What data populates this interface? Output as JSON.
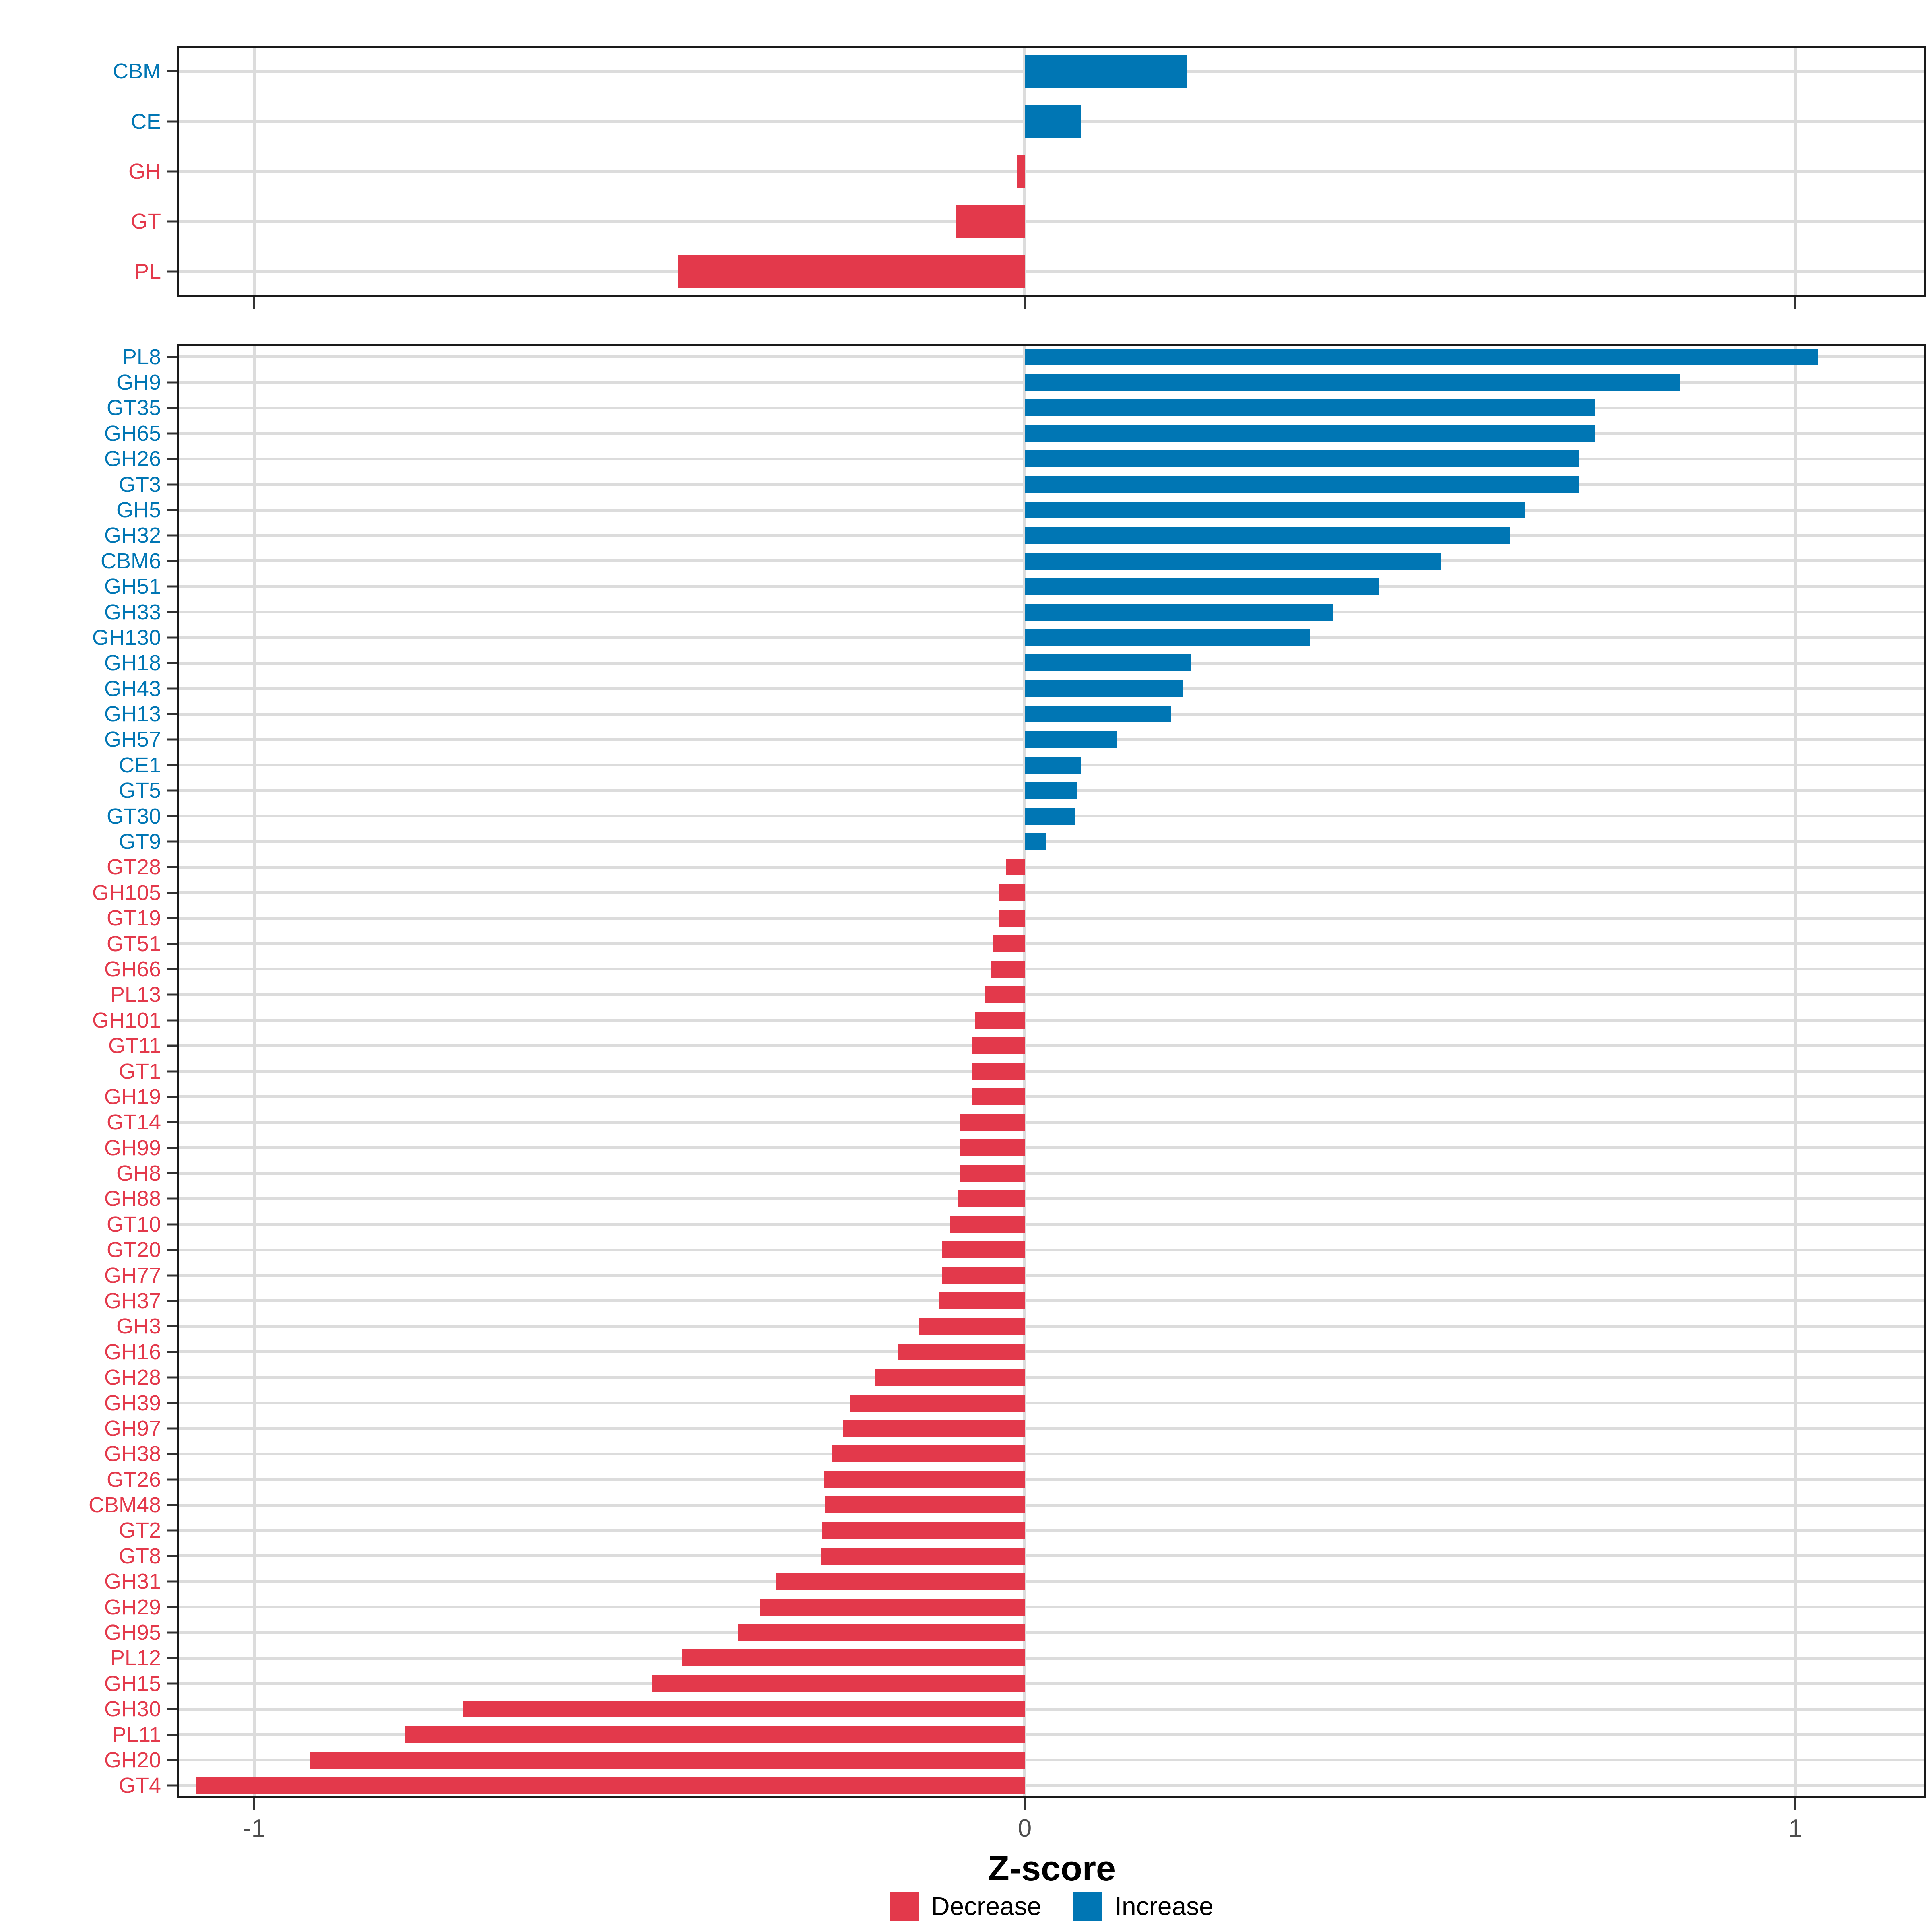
{
  "figure": {
    "background": "#FFFFFF"
  },
  "axis": {
    "xlabel": "Z-score",
    "ticks": [
      -1,
      0,
      1
    ],
    "tick_labels": [
      "-1",
      "0",
      "1"
    ],
    "xlim": [
      -1.1,
      1.17
    ]
  },
  "legend": {
    "items": [
      {
        "label": "Decrease",
        "key": "decrease"
      },
      {
        "label": "Increase",
        "key": "increase"
      }
    ]
  },
  "colors": {
    "increase": "#0076B4",
    "decrease": "#E3394B",
    "grid": "#DCDCDC",
    "axis_line": "#1A1A1A",
    "tick_mark": "#333333",
    "x_tick_label": "#4D4D4D",
    "title": "#000000"
  },
  "chart_data": [
    {
      "id": "top",
      "type": "bar",
      "orientation": "horizontal",
      "title": "",
      "xlabel": "Z-score",
      "categories": [
        "CBM",
        "CE",
        "GH",
        "GT",
        "PL"
      ],
      "values": [
        0.21,
        0.073,
        -0.01,
        -0.09,
        -0.45
      ]
    },
    {
      "id": "bottom",
      "type": "bar",
      "orientation": "horizontal",
      "title": "",
      "xlabel": "Z-score",
      "categories": [
        "PL8",
        "GH9",
        "GT35",
        "GH65",
        "GH26",
        "GT3",
        "GH5",
        "GH32",
        "CBM6",
        "GH51",
        "GH33",
        "GH130",
        "GH18",
        "GH43",
        "GH13",
        "GH57",
        "CE1",
        "GT5",
        "GT30",
        "GT9",
        "GT28",
        "GH105",
        "GT19",
        "GT51",
        "GH66",
        "PL13",
        "GH101",
        "GT11",
        "GT1",
        "GH19",
        "GT14",
        "GH99",
        "GH8",
        "GH88",
        "GT10",
        "GT20",
        "GH77",
        "GH37",
        "GH3",
        "GH16",
        "GH28",
        "GH39",
        "GH97",
        "GH38",
        "GT26",
        "CBM48",
        "GT2",
        "GT8",
        "GH31",
        "GH29",
        "GH95",
        "PL12",
        "GH15",
        "GH30",
        "PL11",
        "GH20",
        "GT4"
      ],
      "values": [
        1.03,
        0.85,
        0.74,
        0.74,
        0.72,
        0.72,
        0.65,
        0.63,
        0.54,
        0.46,
        0.4,
        0.37,
        0.215,
        0.205,
        0.19,
        0.12,
        0.073,
        0.068,
        0.065,
        0.028,
        -0.024,
        -0.033,
        -0.033,
        -0.041,
        -0.044,
        -0.051,
        -0.065,
        -0.068,
        -0.068,
        -0.068,
        -0.084,
        -0.084,
        -0.084,
        -0.086,
        -0.097,
        -0.107,
        -0.107,
        -0.111,
        -0.138,
        -0.164,
        -0.195,
        -0.227,
        -0.236,
        -0.25,
        -0.26,
        -0.259,
        -0.263,
        -0.265,
        -0.323,
        -0.343,
        -0.372,
        -0.445,
        -0.484,
        -0.729,
        -0.805,
        -0.927,
        -1.076
      ]
    }
  ],
  "series_semantics": {
    "positive": "Increase",
    "negative": "Decrease"
  }
}
